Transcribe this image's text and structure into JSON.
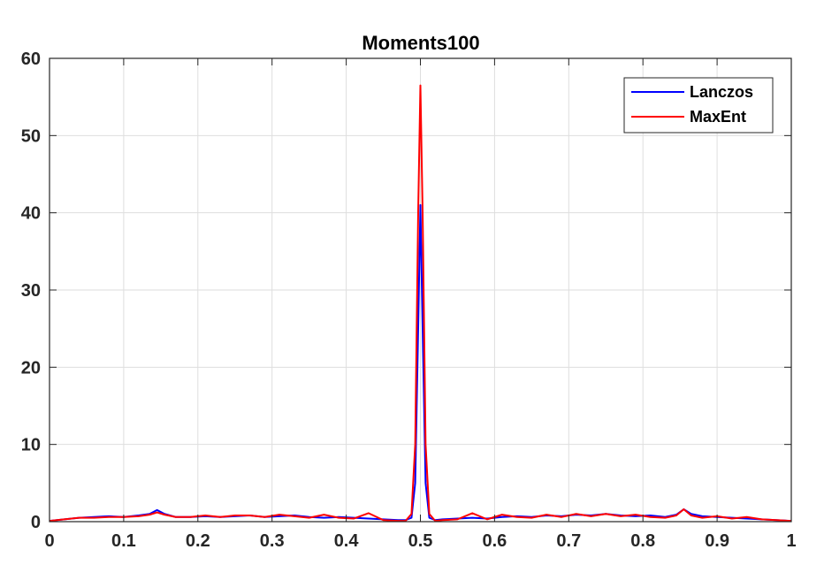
{
  "chart_data": {
    "type": "line",
    "title": "Moments100",
    "xlabel": "",
    "ylabel": "",
    "xlim": [
      0,
      1
    ],
    "ylim": [
      0,
      60
    ],
    "grid": true,
    "legend_placement": "top-right",
    "x_ticks": [
      "0",
      "0.1",
      "0.2",
      "0.3",
      "0.4",
      "0.5",
      "0.6",
      "0.7",
      "0.8",
      "0.9",
      "1"
    ],
    "y_ticks": [
      "0",
      "10",
      "20",
      "30",
      "40",
      "50",
      "60"
    ],
    "series": [
      {
        "name": "Lanczos",
        "color": "#0000ff",
        "x": [
          0,
          0.02,
          0.04,
          0.06,
          0.08,
          0.1,
          0.12,
          0.135,
          0.145,
          0.155,
          0.17,
          0.19,
          0.21,
          0.23,
          0.25,
          0.27,
          0.29,
          0.31,
          0.33,
          0.35,
          0.37,
          0.39,
          0.41,
          0.43,
          0.45,
          0.47,
          0.48,
          0.488,
          0.493,
          0.497,
          0.5,
          0.503,
          0.507,
          0.512,
          0.52,
          0.53,
          0.55,
          0.57,
          0.59,
          0.61,
          0.63,
          0.65,
          0.67,
          0.69,
          0.71,
          0.73,
          0.75,
          0.77,
          0.79,
          0.81,
          0.83,
          0.845,
          0.855,
          0.865,
          0.88,
          0.9,
          0.92,
          0.94,
          0.96,
          0.98,
          1
        ],
        "y": [
          0.1,
          0.3,
          0.5,
          0.6,
          0.7,
          0.6,
          0.8,
          1.0,
          1.5,
          1.0,
          0.6,
          0.6,
          0.7,
          0.6,
          0.7,
          0.8,
          0.6,
          0.7,
          0.8,
          0.6,
          0.5,
          0.6,
          0.5,
          0.4,
          0.3,
          0.2,
          0.2,
          0.5,
          5,
          25,
          41,
          25,
          5,
          0.5,
          0.2,
          0.3,
          0.4,
          0.5,
          0.4,
          0.6,
          0.7,
          0.6,
          0.8,
          0.7,
          0.9,
          0.8,
          1.0,
          0.8,
          0.7,
          0.8,
          0.6,
          0.9,
          1.6,
          1.0,
          0.7,
          0.6,
          0.5,
          0.4,
          0.3,
          0.2,
          0.1
        ]
      },
      {
        "name": "MaxEnt",
        "color": "#ff0000",
        "x": [
          0,
          0.02,
          0.04,
          0.06,
          0.08,
          0.1,
          0.12,
          0.135,
          0.145,
          0.155,
          0.17,
          0.19,
          0.21,
          0.23,
          0.25,
          0.27,
          0.29,
          0.31,
          0.33,
          0.35,
          0.37,
          0.39,
          0.41,
          0.43,
          0.45,
          0.47,
          0.48,
          0.488,
          0.493,
          0.497,
          0.5,
          0.503,
          0.507,
          0.512,
          0.52,
          0.53,
          0.55,
          0.57,
          0.59,
          0.61,
          0.63,
          0.65,
          0.67,
          0.69,
          0.71,
          0.73,
          0.75,
          0.77,
          0.79,
          0.81,
          0.83,
          0.845,
          0.855,
          0.865,
          0.88,
          0.9,
          0.92,
          0.94,
          0.96,
          0.98,
          1
        ],
        "y": [
          0.1,
          0.3,
          0.5,
          0.5,
          0.6,
          0.6,
          0.7,
          0.9,
          1.2,
          0.9,
          0.6,
          0.6,
          0.8,
          0.6,
          0.8,
          0.8,
          0.6,
          0.9,
          0.7,
          0.5,
          0.9,
          0.5,
          0.4,
          1.1,
          0.2,
          0.1,
          0.1,
          1.0,
          10,
          40,
          56.5,
          40,
          10,
          1.0,
          0.1,
          0.2,
          0.3,
          1.1,
          0.3,
          0.9,
          0.6,
          0.5,
          0.9,
          0.6,
          1.0,
          0.7,
          1.0,
          0.7,
          0.9,
          0.6,
          0.5,
          0.8,
          1.6,
          0.8,
          0.5,
          0.7,
          0.4,
          0.6,
          0.3,
          0.2,
          0.1
        ]
      }
    ]
  }
}
